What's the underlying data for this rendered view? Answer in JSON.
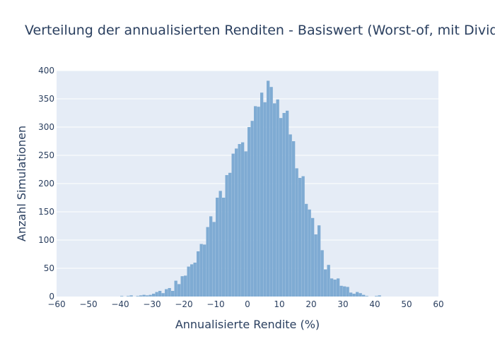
{
  "chart_data": {
    "type": "bar",
    "title": "Verteilung der annualisierten Renditen - Basiswert (Worst-of, mit Dividenden)",
    "xlabel": "Annualisierte Rendite (%)",
    "ylabel": "Anzahl Simulationen",
    "xlim": [
      -60,
      60
    ],
    "ylim": [
      0,
      400
    ],
    "x_ticks": [
      "−60",
      "−50",
      "−40",
      "−30",
      "−20",
      "−10",
      "0",
      "10",
      "20",
      "30",
      "40",
      "50",
      "60"
    ],
    "y_ticks": [
      "0",
      "50",
      "100",
      "150",
      "200",
      "250",
      "300",
      "350",
      "400"
    ],
    "x_tick_values": [
      -60,
      -50,
      -40,
      -30,
      -20,
      -10,
      0,
      10,
      20,
      30,
      40,
      50,
      60
    ],
    "y_tick_values": [
      0,
      50,
      100,
      150,
      200,
      250,
      300,
      350,
      400
    ],
    "bin_width": 1,
    "bins_start": [
      -40,
      -38,
      -37,
      -35,
      -34,
      -33,
      -32,
      -31,
      -30,
      -29,
      -28,
      -27,
      -26,
      -25,
      -24,
      -23,
      -22,
      -21,
      -20,
      -19,
      -18,
      -17,
      -16,
      -15,
      -14,
      -13,
      -12,
      -11,
      -10,
      -9,
      -8,
      -7,
      -6,
      -5,
      -4,
      -3,
      -2,
      -1,
      0,
      1,
      2,
      3,
      4,
      5,
      6,
      7,
      8,
      9,
      10,
      11,
      12,
      13,
      14,
      15,
      16,
      17,
      18,
      19,
      20,
      21,
      22,
      23,
      24,
      25,
      26,
      27,
      28,
      29,
      30,
      31,
      32,
      33,
      34,
      35,
      36,
      37,
      40,
      41
    ],
    "values": [
      1,
      1,
      2,
      1,
      2,
      3,
      2,
      3,
      5,
      8,
      10,
      6,
      13,
      15,
      10,
      28,
      22,
      36,
      37,
      53,
      57,
      60,
      80,
      93,
      92,
      123,
      142,
      132,
      175,
      187,
      175,
      215,
      219,
      253,
      262,
      270,
      273,
      257,
      300,
      311,
      337,
      336,
      361,
      344,
      382,
      371,
      342,
      349,
      316,
      325,
      329,
      287,
      275,
      227,
      210,
      213,
      164,
      154,
      139,
      110,
      126,
      82,
      48,
      56,
      32,
      30,
      32,
      19,
      18,
      17,
      7,
      5,
      8,
      6,
      3,
      1,
      1,
      2
    ],
    "color": "#7fabd3",
    "plot_background": "#e5ecf6",
    "grid": true
  }
}
